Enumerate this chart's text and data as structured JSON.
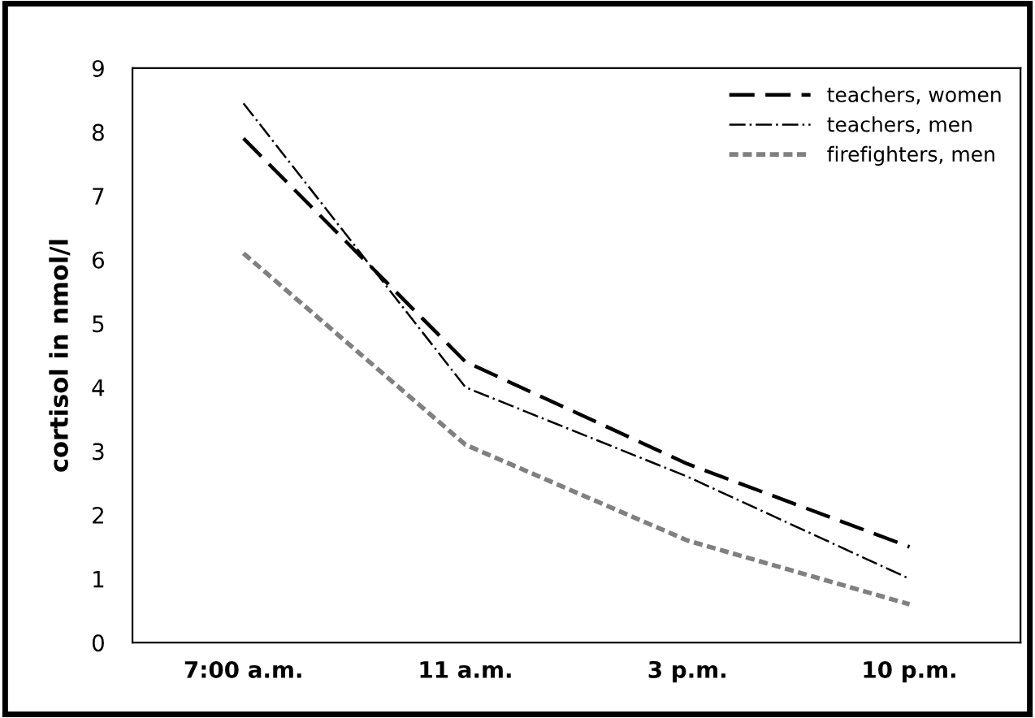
{
  "chart_data": {
    "type": "line",
    "ylabel": "cortisol in nmol/l",
    "categories": [
      "7:00 a.m.",
      "11 a.m.",
      "3 p.m.",
      "10 p.m."
    ],
    "series": [
      {
        "name": "teachers, women",
        "color": "#000000",
        "line_style": "dashed",
        "values": [
          7.9,
          4.4,
          2.8,
          1.5
        ]
      },
      {
        "name": "teachers, men",
        "color": "#000000",
        "line_style": "dashdot",
        "values": [
          8.45,
          4.0,
          2.6,
          1.0
        ]
      },
      {
        "name": "firefighters, men",
        "color": "#808080",
        "line_style": "dotted",
        "values": [
          6.1,
          3.1,
          1.6,
          0.6
        ]
      }
    ],
    "ylim": [
      0,
      9
    ],
    "yticks": [
      0,
      1,
      2,
      3,
      4,
      5,
      6,
      7,
      8,
      9
    ],
    "grid": false,
    "legend": "top right",
    "marker": "none"
  }
}
